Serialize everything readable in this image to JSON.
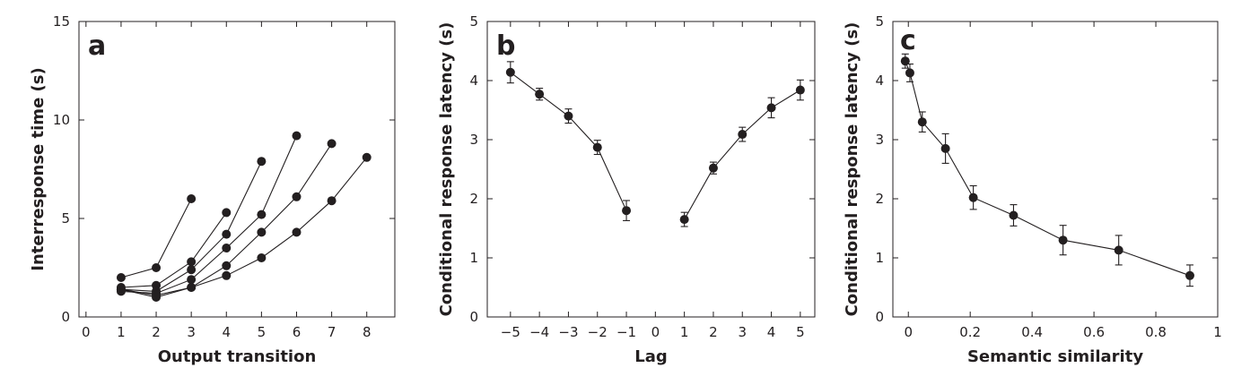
{
  "chart_data": [
    {
      "type": "line",
      "panel_label": "a",
      "xlabel": "Output transition",
      "ylabel": "Interresponse time (s)",
      "xlim": [
        -0.2,
        8.8
      ],
      "ylim": [
        0,
        15
      ],
      "xticks": [
        0,
        1,
        2,
        3,
        4,
        5,
        6,
        7,
        8
      ],
      "xtick_labels": [
        "0",
        "1",
        "2",
        "3",
        "4",
        "5",
        "6",
        "7",
        "8"
      ],
      "yticks": [
        0,
        5,
        10,
        15
      ],
      "ytick_labels": [
        "0",
        "5",
        "10",
        "15"
      ],
      "grid": false,
      "series": [
        {
          "x": [
            1,
            2,
            3
          ],
          "y": [
            2.0,
            2.5,
            6.0
          ]
        },
        {
          "x": [
            1,
            2,
            3,
            4
          ],
          "y": [
            1.5,
            1.6,
            2.8,
            5.3
          ]
        },
        {
          "x": [
            1,
            2,
            3,
            4,
            5
          ],
          "y": [
            1.4,
            1.3,
            2.4,
            4.2,
            7.9
          ]
        },
        {
          "x": [
            1,
            2,
            3,
            4,
            5,
            6
          ],
          "y": [
            1.3,
            1.2,
            1.9,
            3.5,
            5.2,
            9.2
          ]
        },
        {
          "x": [
            1,
            2,
            3,
            4,
            5,
            6,
            7
          ],
          "y": [
            1.4,
            1.1,
            1.5,
            2.6,
            4.3,
            6.1,
            8.8
          ]
        },
        {
          "x": [
            1,
            2,
            3,
            4,
            5,
            6,
            7,
            8
          ],
          "y": [
            1.4,
            1.0,
            1.5,
            2.1,
            3.0,
            4.3,
            5.9,
            8.1
          ]
        }
      ]
    },
    {
      "type": "line",
      "panel_label": "b",
      "xlabel": "Lag",
      "ylabel": "Conditional response latency (s)",
      "xlim": [
        -5.8,
        5.5
      ],
      "ylim": [
        0,
        5
      ],
      "xticks": [
        -5,
        -4,
        -3,
        -2,
        -1,
        0,
        1,
        2,
        3,
        4,
        5
      ],
      "xtick_labels": [
        "−5",
        "−4",
        "−3",
        "−2",
        "−1",
        "0",
        "1",
        "2",
        "3",
        "4",
        "5"
      ],
      "yticks": [
        0,
        1,
        2,
        3,
        4,
        5
      ],
      "ytick_labels": [
        "0",
        "1",
        "2",
        "3",
        "4",
        "5"
      ],
      "grid": false,
      "series": [
        {
          "x": [
            -5,
            -4,
            -3,
            -2,
            -1
          ],
          "y": [
            4.14,
            3.77,
            3.4,
            2.87,
            1.8
          ],
          "err": [
            0.18,
            0.1,
            0.12,
            0.12,
            0.17
          ]
        },
        {
          "x": [
            1,
            2,
            3,
            4,
            5
          ],
          "y": [
            1.65,
            2.52,
            3.09,
            3.54,
            3.84
          ],
          "err": [
            0.12,
            0.1,
            0.12,
            0.17,
            0.17
          ]
        }
      ]
    },
    {
      "type": "line",
      "panel_label": "c",
      "xlabel": "Semantic similarity",
      "ylabel": "Conditional response latency (s)",
      "xlim": [
        -0.05,
        1.0
      ],
      "ylim": [
        0,
        5
      ],
      "xticks": [
        0,
        0.2,
        0.4,
        0.6,
        0.8,
        1
      ],
      "xtick_labels": [
        "0",
        "0.2",
        "0.4",
        "0.6",
        "0.8",
        "1"
      ],
      "yticks": [
        0,
        1,
        2,
        3,
        4,
        5
      ],
      "ytick_labels": [
        "0",
        "1",
        "2",
        "3",
        "4",
        "5"
      ],
      "grid": false,
      "series": [
        {
          "x": [
            -0.01,
            0.005,
            0.045,
            0.12,
            0.21,
            0.34,
            0.5,
            0.68,
            0.91
          ],
          "y": [
            4.33,
            4.13,
            3.3,
            2.85,
            2.02,
            1.72,
            1.3,
            1.13,
            0.7
          ],
          "err": [
            0.12,
            0.15,
            0.17,
            0.25,
            0.2,
            0.18,
            0.25,
            0.25,
            0.18
          ]
        }
      ]
    }
  ]
}
